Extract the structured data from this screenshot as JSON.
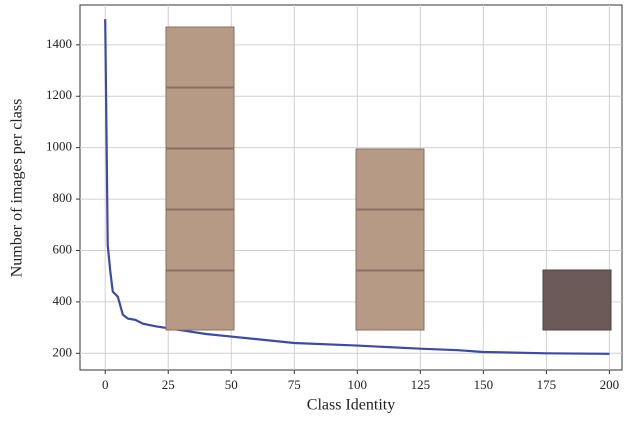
{
  "chart_data": {
    "type": "line",
    "xlabel": "Class Identity",
    "ylabel": "Number of images per class",
    "x": [
      0,
      1,
      2,
      3,
      5,
      7,
      9,
      12,
      15,
      20,
      30,
      40,
      50,
      75,
      100,
      125,
      140,
      150,
      175,
      200
    ],
    "series": [
      {
        "color": "#3b4aa6",
        "values": [
          1500,
          620,
          520,
          440,
          420,
          350,
          335,
          330,
          315,
          305,
          290,
          275,
          265,
          240,
          230,
          218,
          212,
          205,
          200,
          198
        ]
      }
    ],
    "xlim": [
      -10,
      205
    ],
    "xticks": [
      0,
      25,
      50,
      75,
      100,
      125,
      150,
      175,
      200
    ],
    "ylim": [
      135,
      1555
    ],
    "yticks": [
      200,
      400,
      600,
      800,
      1000,
      1200,
      1400
    ],
    "grid": true
  }
}
